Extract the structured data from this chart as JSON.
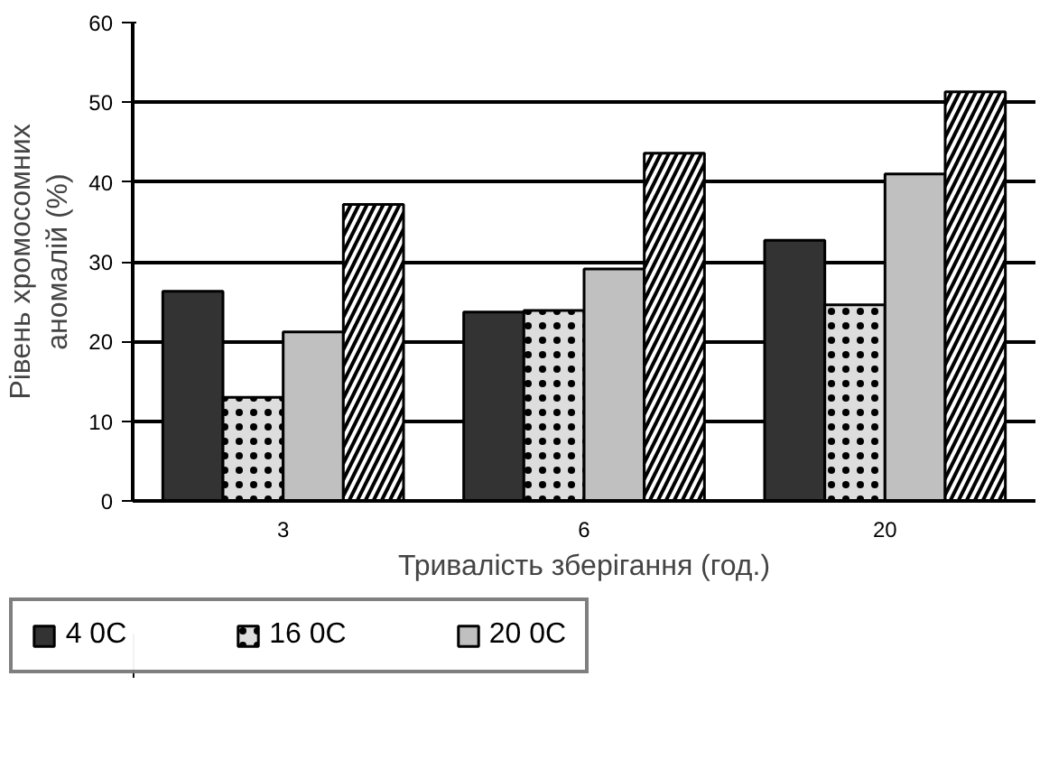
{
  "chart_data": {
    "type": "bar",
    "xlabel": "Тривалість зберігання (год.)",
    "ylabel": "Рівень хромосомних\nаномалій (%)",
    "categories": [
      "3",
      "6",
      "20"
    ],
    "series": [
      {
        "name": "4 0C",
        "color": "#333333",
        "values": [
          26.3,
          23.7,
          32.7
        ]
      },
      {
        "name": "16 0C",
        "color": "#dddddd",
        "values": [
          13.0,
          23.9,
          24.6
        ]
      },
      {
        "name": "20 0C",
        "color": "#c0c0c0",
        "values": [
          21.2,
          29.1,
          41.0
        ]
      },
      {
        "color": "#ffffff",
        "values": [
          37.2,
          43.6,
          51.3
        ]
      }
    ],
    "ylim": [
      0,
      60
    ],
    "yticks": [
      0,
      10,
      20,
      30,
      40,
      50,
      60
    ],
    "grid": "y",
    "legend": "bottom"
  }
}
